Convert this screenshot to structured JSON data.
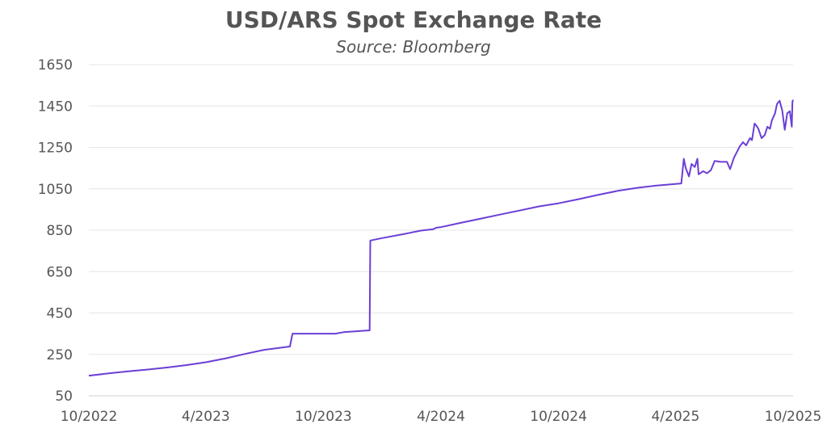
{
  "chart_data": {
    "type": "line",
    "title": "USD/ARS Spot Exchange Rate",
    "subtitle": "Source: Bloomberg",
    "xlabel": "",
    "ylabel": "",
    "ylim": [
      50,
      1650
    ],
    "yticks": [
      "1650",
      "1450",
      "1250",
      "1050",
      "850",
      "650",
      "450",
      "250",
      "50"
    ],
    "xlim": [
      "2022-10-01",
      "2025-10-01"
    ],
    "xticks": [
      {
        "label": "10/2022",
        "date": "2022-10-01"
      },
      {
        "label": "4/2023",
        "date": "2023-04-01"
      },
      {
        "label": "10/2023",
        "date": "2023-10-01"
      },
      {
        "label": "4/2024",
        "date": "2024-04-01"
      },
      {
        "label": "10/2024",
        "date": "2024-10-01"
      },
      {
        "label": "4/2025",
        "date": "2025-04-01"
      },
      {
        "label": "10/2025",
        "date": "2025-10-01"
      }
    ],
    "grid": true,
    "series": [
      {
        "color": "#6a3fd6",
        "points": [
          [
            "2022-10-01",
            147
          ],
          [
            "2022-11-01",
            158
          ],
          [
            "2022-12-01",
            168
          ],
          [
            "2023-01-01",
            177
          ],
          [
            "2023-02-01",
            187
          ],
          [
            "2023-03-01",
            198
          ],
          [
            "2023-04-01",
            212
          ],
          [
            "2023-05-01",
            230
          ],
          [
            "2023-06-01",
            252
          ],
          [
            "2023-07-01",
            272
          ],
          [
            "2023-08-10",
            288
          ],
          [
            "2023-08-14",
            350
          ],
          [
            "2023-09-01",
            350
          ],
          [
            "2023-10-01",
            350
          ],
          [
            "2023-10-20",
            350
          ],
          [
            "2023-11-01",
            357
          ],
          [
            "2023-12-12",
            366
          ],
          [
            "2023-12-13",
            800
          ],
          [
            "2024-01-01",
            812
          ],
          [
            "2024-02-01",
            830
          ],
          [
            "2024-03-01",
            848
          ],
          [
            "2024-03-20",
            855
          ],
          [
            "2024-03-25",
            862
          ],
          [
            "2024-04-01",
            865
          ],
          [
            "2024-05-01",
            885
          ],
          [
            "2024-06-01",
            905
          ],
          [
            "2024-07-01",
            925
          ],
          [
            "2024-08-01",
            945
          ],
          [
            "2024-09-01",
            965
          ],
          [
            "2024-10-01",
            980
          ],
          [
            "2024-11-01",
            1000
          ],
          [
            "2024-12-01",
            1020
          ],
          [
            "2025-01-01",
            1040
          ],
          [
            "2025-02-01",
            1055
          ],
          [
            "2025-03-01",
            1065
          ],
          [
            "2025-04-10",
            1076
          ],
          [
            "2025-04-14",
            1195
          ],
          [
            "2025-04-17",
            1150
          ],
          [
            "2025-04-22",
            1110
          ],
          [
            "2025-04-26",
            1170
          ],
          [
            "2025-05-01",
            1155
          ],
          [
            "2025-05-05",
            1195
          ],
          [
            "2025-05-07",
            1120
          ],
          [
            "2025-05-14",
            1135
          ],
          [
            "2025-05-20",
            1125
          ],
          [
            "2025-05-26",
            1140
          ],
          [
            "2025-06-01",
            1185
          ],
          [
            "2025-06-10",
            1180
          ],
          [
            "2025-06-20",
            1180
          ],
          [
            "2025-06-25",
            1145
          ],
          [
            "2025-07-01",
            1200
          ],
          [
            "2025-07-10",
            1255
          ],
          [
            "2025-07-15",
            1275
          ],
          [
            "2025-07-20",
            1260
          ],
          [
            "2025-07-26",
            1295
          ],
          [
            "2025-07-29",
            1285
          ],
          [
            "2025-08-02",
            1365
          ],
          [
            "2025-08-05",
            1355
          ],
          [
            "2025-08-08",
            1340
          ],
          [
            "2025-08-13",
            1295
          ],
          [
            "2025-08-18",
            1310
          ],
          [
            "2025-08-22",
            1350
          ],
          [
            "2025-08-26",
            1340
          ],
          [
            "2025-08-29",
            1380
          ],
          [
            "2025-09-03",
            1415
          ],
          [
            "2025-09-06",
            1460
          ],
          [
            "2025-09-10",
            1475
          ],
          [
            "2025-09-14",
            1430
          ],
          [
            "2025-09-18",
            1335
          ],
          [
            "2025-09-22",
            1415
          ],
          [
            "2025-09-26",
            1425
          ],
          [
            "2025-09-29",
            1350
          ],
          [
            "2025-09-30",
            1470
          ],
          [
            "2025-10-01",
            1480
          ]
        ]
      }
    ]
  }
}
